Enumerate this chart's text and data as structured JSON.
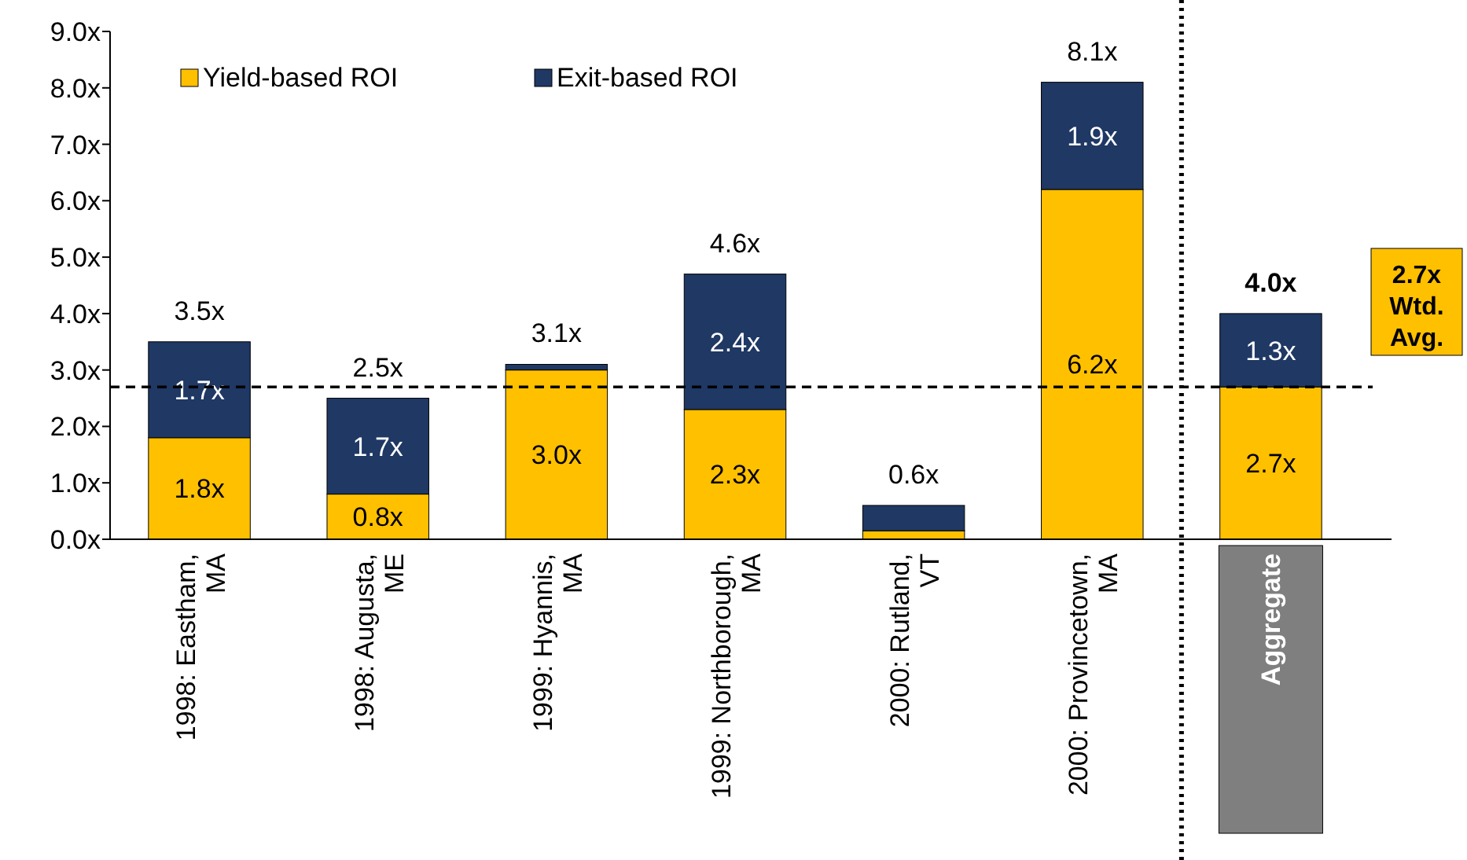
{
  "chart_data": {
    "type": "bar",
    "stacked": true,
    "categories": [
      "1998:  Eastham,\nMA",
      "1998: Augusta,\nME",
      "1999: Hyannis,\nMA",
      "1999: Northborough,\nMA",
      "2000: Rutland,\nVT",
      "2000: Provincetown,\nMA",
      "Aggregate"
    ],
    "series": [
      {
        "name": "Yield-based ROI",
        "color": "#ffc000",
        "values": [
          1.8,
          0.8,
          3.0,
          2.3,
          0.15,
          6.2,
          2.7
        ],
        "value_labels": [
          "1.8x",
          "0.8x",
          "3.0x",
          "2.3x",
          null,
          "6.2x",
          "2.7x"
        ]
      },
      {
        "name": "Exit-based ROI",
        "color": "#1f3864",
        "values": [
          1.7,
          1.7,
          0.1,
          2.4,
          0.45,
          1.9,
          1.3
        ],
        "value_labels": [
          "1.7x",
          "1.7x",
          null,
          "2.4x",
          null,
          "1.9x",
          "1.3x"
        ]
      }
    ],
    "totals": [
      "3.5x",
      "2.5x",
      "3.1x",
      "4.6x",
      "0.6x",
      "8.1x",
      "4.0x"
    ],
    "ylim": [
      0,
      9
    ],
    "yticks": [
      {
        "value": 0,
        "label": "0.0x"
      },
      {
        "value": 1,
        "label": "1.0x"
      },
      {
        "value": 2,
        "label": "2.0x"
      },
      {
        "value": 3,
        "label": "3.0x"
      },
      {
        "value": 4,
        "label": "4.0x"
      },
      {
        "value": 5,
        "label": "5.0x"
      },
      {
        "value": 6,
        "label": "6.0x"
      },
      {
        "value": 7,
        "label": "7.0x"
      },
      {
        "value": 8,
        "label": "8.0x"
      },
      {
        "value": 9,
        "label": "9.0x"
      }
    ],
    "ref_lines": [
      {
        "axis": "y",
        "value": 2.7,
        "label": "2.7x\nWtd.\nAvg.",
        "color": "#000000",
        "line_style": "dashed"
      }
    ],
    "grid": false,
    "legend": "top left"
  }
}
